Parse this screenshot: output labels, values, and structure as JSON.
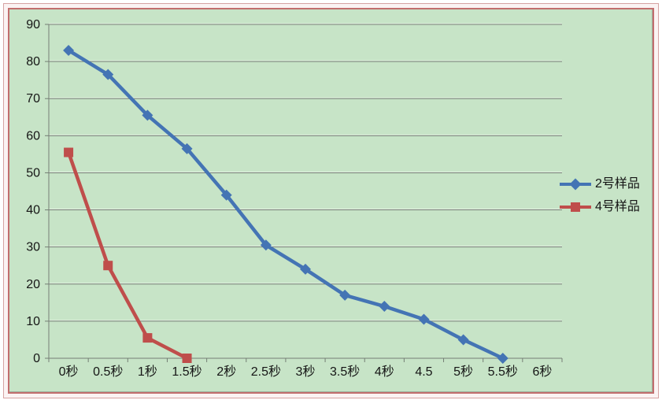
{
  "frame": {
    "outer_border_color": "#d6a2a2",
    "inner_border_color": "#c26e6e",
    "panel_bg": "#c7e4c7",
    "panel_edge_color": "#9fb19f"
  },
  "chart_data": {
    "type": "line",
    "title": "",
    "xlabel": "",
    "ylabel": "",
    "categories": [
      "0秒",
      "0.5秒",
      "1秒",
      "1.5秒",
      "2秒",
      "2.5秒",
      "3秒",
      "3.5秒",
      "4秒",
      "4.5",
      "5秒",
      "5.5秒",
      "6秒"
    ],
    "series": [
      {
        "name": "2号样品",
        "color": "#4474b4",
        "marker": "diamond",
        "values": [
          83,
          76.5,
          65.5,
          56.5,
          44,
          30.5,
          24,
          17,
          14,
          10.5,
          5,
          0
        ]
      },
      {
        "name": "4号样品",
        "color": "#bf4e4b",
        "marker": "square",
        "values": [
          55.5,
          25,
          5.5,
          0
        ]
      }
    ],
    "ylim": [
      0,
      90
    ],
    "ytick_step": 10,
    "yticks": [
      0,
      10,
      20,
      30,
      40,
      50,
      60,
      70,
      80,
      90
    ],
    "grid": true,
    "grid_color": "#747e74",
    "grid_highlight_color": "#e7f3e5",
    "axis_text_color": "#151515",
    "legend_position": "right"
  }
}
